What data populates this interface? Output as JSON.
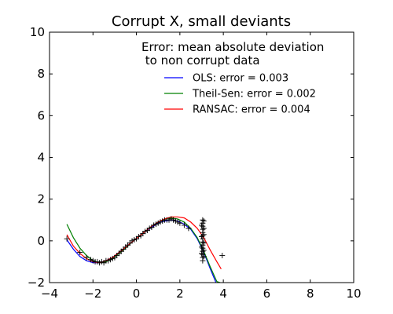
{
  "chart_data": {
    "type": "line",
    "title": "Corrupt X, small deviants",
    "xlabel": "",
    "ylabel": "",
    "xlim": [
      -4,
      10
    ],
    "ylim": [
      -2,
      10
    ],
    "xticks": [
      -4,
      -2,
      0,
      2,
      4,
      6,
      8,
      10
    ],
    "yticks": [
      -2,
      0,
      2,
      4,
      6,
      8,
      10
    ],
    "xtick_labels": [
      "−4",
      "−2",
      "0",
      "2",
      "4",
      "6",
      "8",
      "10"
    ],
    "ytick_labels": [
      "−2",
      "0",
      "2",
      "4",
      "6",
      "8",
      "10"
    ],
    "grid": false,
    "legend": {
      "placement": "top-right",
      "title": [
        "Error: mean absolute deviation",
        " to non corrupt data"
      ]
    },
    "series": [
      {
        "name": "OLS: error = 0.003",
        "color": "#0000ff",
        "x": [
          -3.2,
          -2.9,
          -2.6,
          -2.3,
          -2.0,
          -1.7,
          -1.4,
          -1.1,
          -0.8,
          -0.5,
          -0.2,
          0.1,
          0.4,
          0.7,
          1.0,
          1.3,
          1.6,
          1.9,
          2.2,
          2.5,
          2.8,
          3.1,
          3.4,
          3.7
        ],
        "y": [
          0.05,
          -0.4,
          -0.75,
          -0.95,
          -1.05,
          -1.05,
          -0.95,
          -0.8,
          -0.55,
          -0.3,
          -0.05,
          0.2,
          0.45,
          0.65,
          0.85,
          0.95,
          1.0,
          0.95,
          0.8,
          0.55,
          0.1,
          -0.55,
          -1.35,
          -2.1
        ]
      },
      {
        "name": "Theil-Sen: error = 0.002",
        "color": "#008000",
        "x": [
          -3.2,
          -2.9,
          -2.6,
          -2.3,
          -2.0,
          -1.7,
          -1.4,
          -1.1,
          -0.8,
          -0.5,
          -0.2,
          0.1,
          0.4,
          0.7,
          1.0,
          1.3,
          1.6,
          1.9,
          2.2,
          2.5,
          2.8,
          3.1,
          3.4,
          3.7,
          3.85
        ],
        "y": [
          0.8,
          0.15,
          -0.35,
          -0.7,
          -0.95,
          -1.05,
          -1.0,
          -0.85,
          -0.6,
          -0.35,
          -0.05,
          0.2,
          0.45,
          0.7,
          0.9,
          1.05,
          1.1,
          1.05,
          0.9,
          0.6,
          0.15,
          -0.5,
          -1.25,
          -1.95,
          -2.0
        ]
      },
      {
        "name": "RANSAC: error = 0.004",
        "color": "#ff0000",
        "x": [
          -3.2,
          -2.9,
          -2.6,
          -2.3,
          -2.0,
          -1.7,
          -1.4,
          -1.1,
          -0.8,
          -0.5,
          -0.2,
          0.1,
          0.4,
          0.7,
          1.0,
          1.3,
          1.6,
          1.9,
          2.2,
          2.5,
          2.8,
          3.1,
          3.4,
          3.7,
          3.9
        ],
        "y": [
          0.3,
          -0.25,
          -0.6,
          -0.85,
          -1.0,
          -1.05,
          -0.95,
          -0.8,
          -0.55,
          -0.3,
          -0.05,
          0.2,
          0.45,
          0.7,
          0.9,
          1.05,
          1.15,
          1.15,
          1.1,
          0.9,
          0.6,
          0.15,
          -0.45,
          -1.0,
          -1.35
        ]
      }
    ],
    "scatter": {
      "marker": "+",
      "color": "#000000",
      "points": [
        [
          -3.2,
          0.1
        ],
        [
          -2.6,
          -0.55
        ],
        [
          -2.3,
          -0.8
        ],
        [
          -2.1,
          -0.9
        ],
        [
          -2.0,
          -0.95
        ],
        [
          -1.9,
          -1.0
        ],
        [
          -1.8,
          -1.0
        ],
        [
          -1.7,
          -1.05
        ],
        [
          -1.6,
          -1.0
        ],
        [
          -1.5,
          -1.05
        ],
        [
          -1.4,
          -0.95
        ],
        [
          -1.3,
          -0.95
        ],
        [
          -1.2,
          -0.9
        ],
        [
          -1.1,
          -0.85
        ],
        [
          -1.0,
          -0.8
        ],
        [
          -0.9,
          -0.7
        ],
        [
          -0.8,
          -0.6
        ],
        [
          -0.7,
          -0.5
        ],
        [
          -0.6,
          -0.4
        ],
        [
          -0.5,
          -0.3
        ],
        [
          -0.4,
          -0.2
        ],
        [
          -0.3,
          -0.1
        ],
        [
          -0.2,
          0.0
        ],
        [
          -0.1,
          0.05
        ],
        [
          0.0,
          0.1
        ],
        [
          0.1,
          0.2
        ],
        [
          0.2,
          0.25
        ],
        [
          0.3,
          0.35
        ],
        [
          0.4,
          0.45
        ],
        [
          0.5,
          0.5
        ],
        [
          0.6,
          0.6
        ],
        [
          0.7,
          0.65
        ],
        [
          0.8,
          0.75
        ],
        [
          0.9,
          0.8
        ],
        [
          1.0,
          0.85
        ],
        [
          1.1,
          0.9
        ],
        [
          1.2,
          0.95
        ],
        [
          1.3,
          1.0
        ],
        [
          1.4,
          1.0
        ],
        [
          1.5,
          1.0
        ],
        [
          1.6,
          1.05
        ],
        [
          1.7,
          1.0
        ],
        [
          1.8,
          0.95
        ],
        [
          1.9,
          0.9
        ],
        [
          2.0,
          0.85
        ],
        [
          2.2,
          0.75
        ],
        [
          2.4,
          0.6
        ],
        [
          3.05,
          1.0
        ],
        [
          3.05,
          0.85
        ],
        [
          3.05,
          0.7
        ],
        [
          3.05,
          0.55
        ],
        [
          3.05,
          0.4
        ],
        [
          3.05,
          0.25
        ],
        [
          3.05,
          0.1
        ],
        [
          3.05,
          -0.05
        ],
        [
          3.05,
          -0.2
        ],
        [
          3.05,
          -0.35
        ],
        [
          3.05,
          -0.5
        ],
        [
          3.05,
          -0.65
        ],
        [
          3.05,
          -0.8
        ],
        [
          3.05,
          -0.95
        ],
        [
          3.1,
          0.95
        ],
        [
          3.1,
          0.6
        ],
        [
          3.1,
          0.3
        ],
        [
          3.1,
          -0.1
        ],
        [
          3.1,
          -0.45
        ],
        [
          3.1,
          -0.75
        ],
        [
          3.0,
          0.75
        ],
        [
          3.0,
          0.2
        ],
        [
          3.0,
          -0.3
        ],
        [
          3.0,
          -0.6
        ],
        [
          3.95,
          -0.7
        ]
      ]
    }
  }
}
